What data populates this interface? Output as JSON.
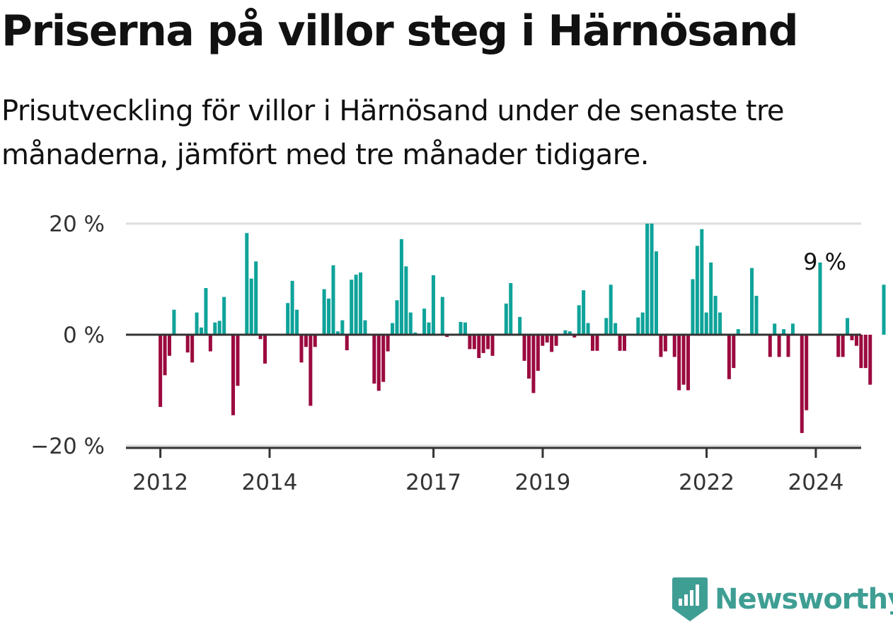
{
  "header": {
    "title": "Priserna på villor steg i Härnösand",
    "subtitle": "Prisutveckling för villor i Härnösand under de senaste tre månaderna, jämfört med tre månader tidigare."
  },
  "brand": {
    "name": "Newsworthy",
    "color": "#3f9e94"
  },
  "colors": {
    "positive": "#0fa39a",
    "negative": "#9b0a3f",
    "grid": "#dddddd",
    "zero_line": "#333333",
    "axis": "#333333"
  },
  "chart_data": {
    "type": "bar",
    "title": "Priserna på villor steg i Härnösand",
    "xlabel": "",
    "ylabel": "",
    "ylim": [
      -20,
      20
    ],
    "yticks": [
      20,
      0,
      -20
    ],
    "ytick_labels": [
      "20 %",
      "0 %",
      "−20 %"
    ],
    "xticks": [
      {
        "label": "2012",
        "value": 2012.0
      },
      {
        "label": "2014",
        "value": 2014.0
      },
      {
        "label": "2017",
        "value": 2017.0
      },
      {
        "label": "2019",
        "value": 2019.0
      },
      {
        "label": "2022",
        "value": 2022.0
      },
      {
        "label": "2024",
        "value": 2024.0
      }
    ],
    "x_start": 2011.37,
    "x_end": 2024.83,
    "bar_step": 0.0833,
    "start_month": "2012-01",
    "end_label": "9 %",
    "grid": true,
    "legend": "none",
    "series": [
      {
        "values": [
          -13,
          -7.3,
          -3.8,
          4.5,
          0,
          0,
          -3.2,
          -5,
          4,
          1.3,
          8.4,
          -3,
          2.2,
          2.5,
          6.8,
          0,
          -14.5,
          -9.2,
          0,
          18.3,
          10.1,
          13.2,
          -0.8,
          -5.2,
          0,
          0,
          0,
          0,
          5.7,
          9.7,
          4.5,
          -5,
          -2.2,
          -12.8,
          -2.2,
          0,
          8.2,
          6.5,
          12.5,
          0.6,
          2.6,
          -2.8,
          9.9,
          10.8,
          11.2,
          2.6,
          0,
          -8.8,
          -10.1,
          -8.5,
          -3,
          2.1,
          6.2,
          17.2,
          12.3,
          4,
          0.4,
          0,
          4.7,
          2.2,
          10.7,
          0,
          6.8,
          -0.4,
          0,
          0,
          2.3,
          2.2,
          -2.6,
          -2.6,
          -4.2,
          -3.3,
          -2.6,
          -3.8,
          0,
          0,
          5.6,
          9.3,
          0,
          3.2,
          -4.7,
          -7.9,
          -10.5,
          -6.5,
          -2,
          -1.4,
          -3.1,
          -2,
          0,
          0.8,
          0.6,
          -0.5,
          5.3,
          8,
          2.1,
          -2.9,
          -2.9,
          0,
          3,
          9,
          2.1,
          -2.9,
          -2.9,
          0,
          0,
          3.1,
          4,
          20,
          20,
          15,
          -4,
          -3,
          0,
          -4,
          -10,
          -9,
          -10,
          10,
          16,
          19,
          4,
          13,
          7,
          4,
          0,
          -8,
          -6,
          1,
          0,
          0,
          12,
          7,
          0,
          0,
          -4,
          2,
          -4,
          1,
          -4,
          2,
          0,
          -17.7,
          -13.6,
          0,
          0,
          13,
          0,
          0,
          0,
          -4,
          -4,
          3,
          -1,
          -2,
          -6,
          -6,
          -9,
          0,
          0,
          9
        ]
      }
    ]
  }
}
